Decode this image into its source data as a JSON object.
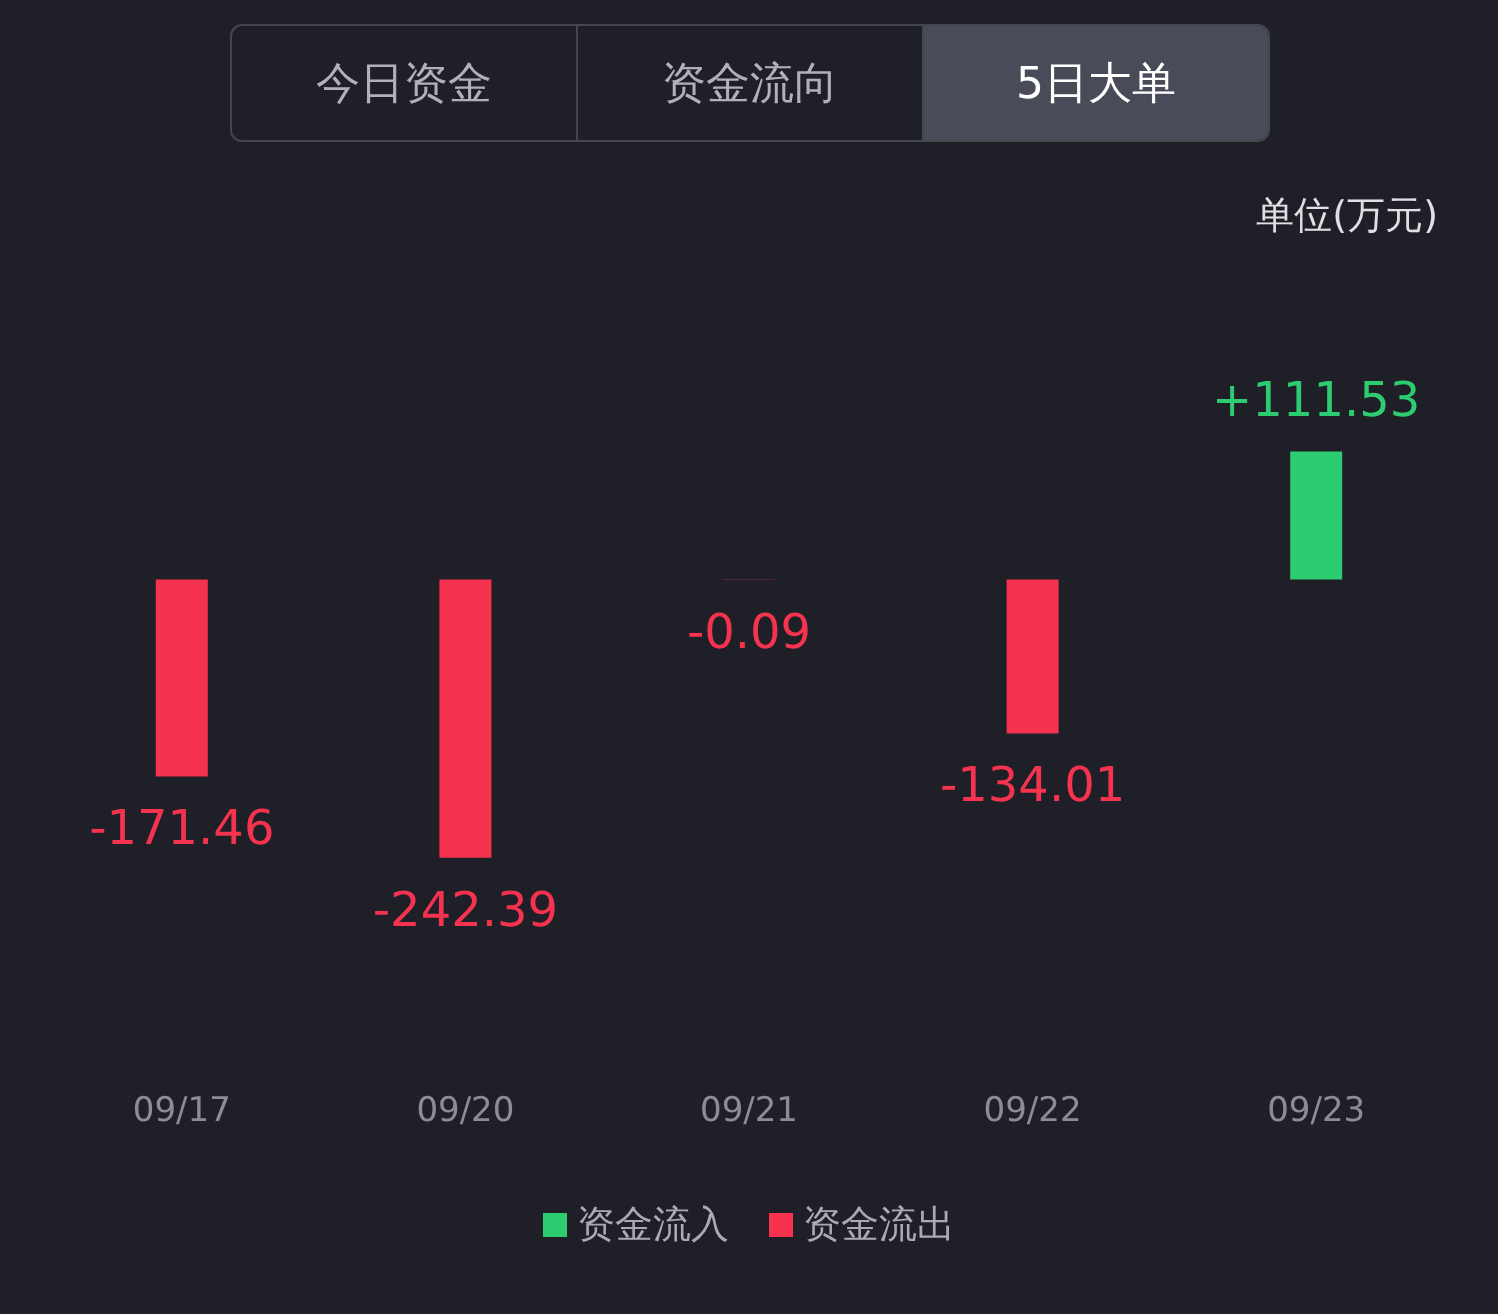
{
  "chart_data": {
    "type": "bar",
    "categories": [
      "09/17",
      "09/20",
      "09/21",
      "09/22",
      "09/23"
    ],
    "series": [
      {
        "name": "资金流入",
        "color": "#2ecc71",
        "values": [
          null,
          null,
          null,
          null,
          111.53
        ],
        "value_labels": [
          null,
          null,
          null,
          null,
          "+111.53"
        ]
      },
      {
        "name": "资金流出",
        "color": "#f5334f",
        "values": [
          -171.46,
          -242.39,
          -0.09,
          -134.01,
          null
        ],
        "value_labels": [
          "-171.46",
          "-242.39",
          "-0.09",
          "-134.01",
          null
        ]
      }
    ],
    "stacked": true,
    "legend": "bottom",
    "grid": false,
    "annotations": [
      "今日资金",
      "资金流向",
      "5日大单",
      "单位(万元)"
    ]
  }
}
